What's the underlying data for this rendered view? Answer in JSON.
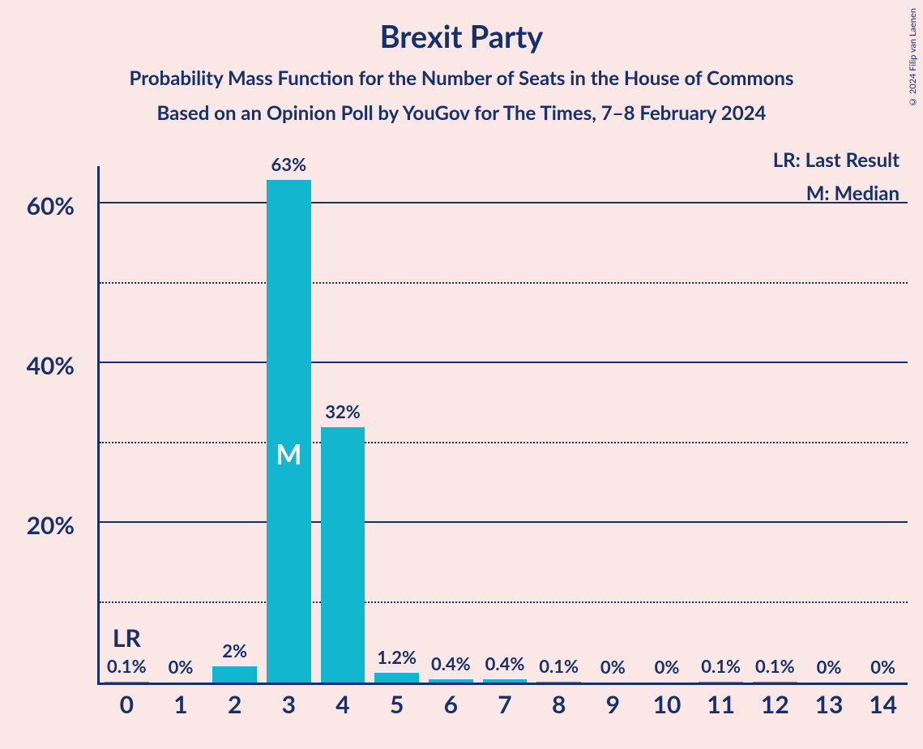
{
  "title": "Brexit Party",
  "subtitle": "Probability Mass Function for the Number of Seats in the House of Commons",
  "subtitle2": "Based on an Opinion Poll by YouGov for The Times, 7–8 February 2024",
  "copyright": "© 2024 Filip van Laenen",
  "legend": {
    "lr": "LR: Last Result",
    "m": "M: Median"
  },
  "chart": {
    "type": "bar",
    "bar_color": "#12b6cf",
    "background_color": "#fce7e7",
    "axis_color": "#15306b",
    "text_color": "#15306b",
    "median_text_color": "#ffffff",
    "title_fontsize": 38,
    "subtitle_fontsize": 24,
    "tick_fontsize": 30,
    "barlabel_fontsize": 22,
    "legend_fontsize": 24,
    "ylim": [
      0,
      65
    ],
    "y_major_ticks": [
      20,
      40,
      60
    ],
    "y_minor_ticks": [
      10,
      30,
      50
    ],
    "ytick_labels": {
      "20": "20%",
      "40": "40%",
      "60": "60%"
    },
    "categories": [
      "0",
      "1",
      "2",
      "3",
      "4",
      "5",
      "6",
      "7",
      "8",
      "9",
      "10",
      "11",
      "12",
      "13",
      "14"
    ],
    "values": [
      0.1,
      0,
      2,
      63,
      32,
      1.2,
      0.4,
      0.4,
      0.1,
      0,
      0,
      0.1,
      0.1,
      0,
      0
    ],
    "value_labels": [
      "0.1%",
      "0%",
      "2%",
      "63%",
      "32%",
      "1.2%",
      "0.4%",
      "0.4%",
      "0.1%",
      "0%",
      "0%",
      "0.1%",
      "0.1%",
      "0%",
      "0%"
    ],
    "bar_width_ratio": 0.82,
    "lr_index": 0,
    "lr_label": "LR",
    "median_index": 3,
    "median_label": "M"
  }
}
